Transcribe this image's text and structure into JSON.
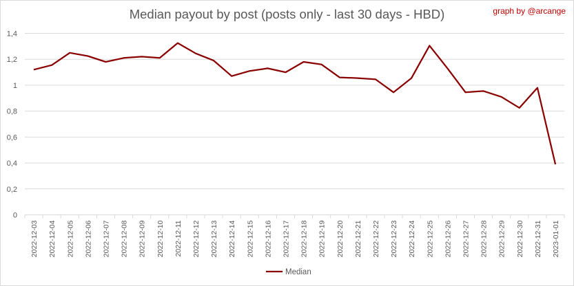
{
  "chart_data": {
    "type": "line",
    "title": "Median payout by post (posts only - last 30 days - HBD)",
    "credit": "graph by @arcange",
    "categories": [
      "2022-12-03",
      "2022-12-04",
      "2022-12-05",
      "2022-12-06",
      "2022-12-07",
      "2022-12-08",
      "2022-12-09",
      "2022-12-10",
      "2022-12-11",
      "2022-12-12",
      "2022-12-13",
      "2022-12-14",
      "2022-12-15",
      "2022-12-16",
      "2022-12-17",
      "2022-12-18",
      "2022-12-19",
      "2022-12-20",
      "2022-12-21",
      "2022-12-22",
      "2022-12-23",
      "2022-12-24",
      "2022-12-25",
      "2022-12-26",
      "2022-12-27",
      "2022-12-28",
      "2022-12-29",
      "2022-12-30",
      "2022-12-31",
      "2023-01-01"
    ],
    "series": [
      {
        "name": "Median",
        "color": "#8b0000",
        "values": [
          1.12,
          1.155,
          1.25,
          1.225,
          1.18,
          1.21,
          1.22,
          1.21,
          1.325,
          1.245,
          1.19,
          1.07,
          1.11,
          1.13,
          1.1,
          1.18,
          1.16,
          1.06,
          1.055,
          1.045,
          0.945,
          1.055,
          1.305,
          1.13,
          0.945,
          0.955,
          0.91,
          0.825,
          0.98,
          0.39
        ]
      }
    ],
    "ylim": [
      0,
      1.4
    ],
    "yticks": [
      "0",
      "0,2",
      "0,4",
      "0,6",
      "0,8",
      "1",
      "1,2",
      "1,4"
    ],
    "grid": true,
    "legend": "bottom-center"
  }
}
